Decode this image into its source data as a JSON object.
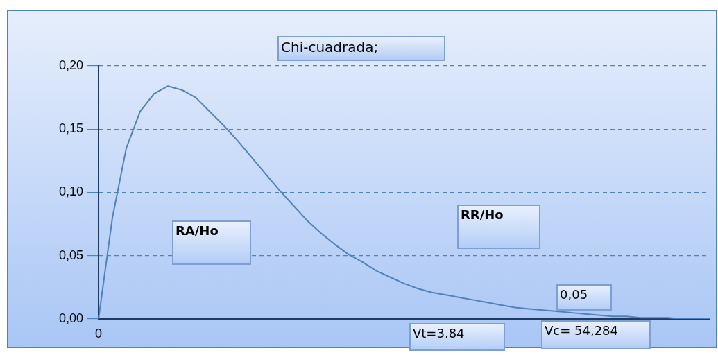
{
  "chart_data": {
    "type": "line",
    "title": "Chi-cuadrada;",
    "categories": [
      "0",
      null,
      null,
      null,
      null,
      null,
      null,
      null,
      null,
      null,
      null,
      null,
      null,
      null,
      null,
      null,
      null,
      null,
      null,
      null,
      null,
      null,
      null,
      null,
      null,
      null,
      null,
      null,
      null,
      null,
      null,
      null,
      null,
      null,
      null,
      null,
      null,
      null,
      null,
      null,
      null,
      null,
      null,
      null,
      null
    ],
    "series": [
      {
        "color": "#4f81bd",
        "values": [
          0,
          0.08,
          0.135,
          0.164,
          0.178,
          0.184,
          0.181,
          0.175,
          0.164,
          0.153,
          0.141,
          0.128,
          0.115,
          0.102,
          0.09,
          0.078,
          0.068,
          0.059,
          0.051,
          0.045,
          0.038,
          0.033,
          0.028,
          0.024,
          0.021,
          0.019,
          0.017,
          0.015,
          0.013,
          0.011,
          0.009,
          0.008,
          0.007,
          0.006,
          0.005,
          0.004,
          0.003,
          0.002,
          0.002,
          0.001,
          0.001,
          0.001,
          0,
          0,
          0
        ]
      }
    ],
    "ylim": [
      0,
      0.2
    ],
    "yticks": [
      {
        "value": 0,
        "label": "0,00"
      },
      {
        "value": 0.05,
        "label": "0,05"
      },
      {
        "value": 0.1,
        "label": "0,10"
      },
      {
        "value": 0.15,
        "label": "0,15"
      },
      {
        "value": 0.2,
        "label": "0,20"
      }
    ],
    "grid": "y",
    "legend": false,
    "marker": "none",
    "line_style": "solid",
    "annotations": [
      "RA/Ho",
      "RR/Ho",
      "Vt=3.84",
      "Vc= 54,284",
      "0,05"
    ]
  }
}
